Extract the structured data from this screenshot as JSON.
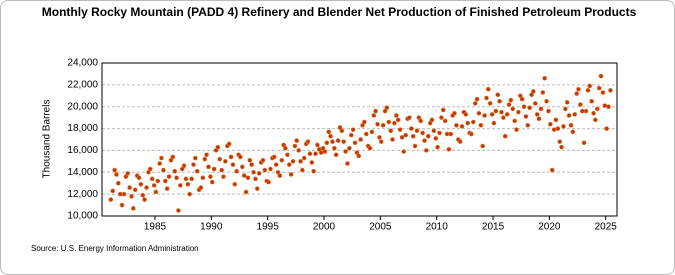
{
  "chart_data": {
    "type": "scatter",
    "title": "Monthly Rocky Mountain (PADD 4) Refinery and Blender Net Production of Finished Petroleum Products",
    "y_label": "Thousand Barrels",
    "source": "Source: U.S. Energy Information Administration",
    "color": "#c0390b",
    "grid": true,
    "xlim": [
      1980.3,
      2026
    ],
    "xticks": [
      1985,
      1990,
      1995,
      2000,
      2005,
      2010,
      2015,
      2020,
      2025
    ],
    "ylim": [
      10000,
      24000
    ],
    "yticks": [
      {
        "value": 10000,
        "label": "10,000"
      },
      {
        "value": 12000,
        "label": "12,000"
      },
      {
        "value": 14000,
        "label": "14,000"
      },
      {
        "value": 16000,
        "label": "16,000"
      },
      {
        "value": 18000,
        "label": "18,000"
      },
      {
        "value": 20000,
        "label": "20,000"
      },
      {
        "value": 22000,
        "label": "22,000"
      },
      {
        "value": 24000,
        "label": "24,000"
      }
    ],
    "x": [
      1981.08,
      1981.25,
      1981.42,
      1981.58,
      1981.75,
      1981.92,
      1982.08,
      1982.25,
      1982.42,
      1982.58,
      1982.75,
      1982.92,
      1983.08,
      1983.25,
      1983.42,
      1983.58,
      1983.75,
      1983.92,
      1984.08,
      1984.25,
      1984.42,
      1984.58,
      1984.75,
      1984.92,
      1985.08,
      1985.25,
      1985.42,
      1985.58,
      1985.75,
      1985.92,
      1986.08,
      1986.25,
      1986.42,
      1986.58,
      1986.75,
      1986.92,
      1987.08,
      1987.25,
      1987.42,
      1987.58,
      1987.75,
      1987.92,
      1988.08,
      1988.25,
      1988.42,
      1988.58,
      1988.75,
      1988.92,
      1989.08,
      1989.25,
      1989.42,
      1989.58,
      1989.75,
      1989.92,
      1990.08,
      1990.25,
      1990.42,
      1990.58,
      1990.75,
      1990.92,
      1991.08,
      1991.25,
      1991.42,
      1991.58,
      1991.75,
      1991.92,
      1992.08,
      1992.25,
      1992.42,
      1992.58,
      1992.75,
      1992.92,
      1993.08,
      1993.25,
      1993.42,
      1993.58,
      1993.75,
      1993.92,
      1994.08,
      1994.25,
      1994.42,
      1994.58,
      1994.75,
      1994.92,
      1995.08,
      1995.25,
      1995.42,
      1995.58,
      1995.75,
      1995.92,
      1996.08,
      1996.25,
      1996.42,
      1996.58,
      1996.75,
      1996.92,
      1997.08,
      1997.25,
      1997.42,
      1997.58,
      1997.75,
      1997.92,
      1998.08,
      1998.25,
      1998.42,
      1998.58,
      1998.75,
      1998.92,
      1999.08,
      1999.25,
      1999.42,
      1999.58,
      1999.75,
      1999.92,
      2000.08,
      2000.25,
      2000.42,
      2000.58,
      2000.75,
      2000.92,
      2001.08,
      2001.25,
      2001.42,
      2001.58,
      2001.75,
      2001.92,
      2002.08,
      2002.25,
      2002.42,
      2002.58,
      2002.75,
      2002.92,
      2003.08,
      2003.25,
      2003.42,
      2003.58,
      2003.75,
      2003.92,
      2004.08,
      2004.25,
      2004.42,
      2004.58,
      2004.75,
      2004.92,
      2005.08,
      2005.25,
      2005.42,
      2005.58,
      2005.75,
      2005.92,
      2006.08,
      2006.25,
      2006.42,
      2006.58,
      2006.75,
      2006.92,
      2007.08,
      2007.25,
      2007.42,
      2007.58,
      2007.75,
      2007.92,
      2008.08,
      2008.25,
      2008.42,
      2008.58,
      2008.75,
      2008.92,
      2009.08,
      2009.25,
      2009.42,
      2009.58,
      2009.75,
      2009.92,
      2010.08,
      2010.25,
      2010.42,
      2010.58,
      2010.75,
      2010.92,
      2011.08,
      2011.25,
      2011.42,
      2011.58,
      2011.75,
      2011.92,
      2012.08,
      2012.25,
      2012.42,
      2012.58,
      2012.75,
      2012.92,
      2013.08,
      2013.25,
      2013.42,
      2013.58,
      2013.75,
      2013.92,
      2014.08,
      2014.25,
      2014.42,
      2014.58,
      2014.75,
      2014.92,
      2015.08,
      2015.25,
      2015.42,
      2015.58,
      2015.75,
      2015.92,
      2016.08,
      2016.25,
      2016.42,
      2016.58,
      2016.75,
      2016.92,
      2017.08,
      2017.25,
      2017.42,
      2017.58,
      2017.75,
      2017.92,
      2018.08,
      2018.25,
      2018.42,
      2018.58,
      2018.75,
      2018.92,
      2019.08,
      2019.25,
      2019.42,
      2019.58,
      2019.75,
      2019.92,
      2020.08,
      2020.25,
      2020.42,
      2020.58,
      2020.75,
      2020.92,
      2021.08,
      2021.25,
      2021.42,
      2021.58,
      2021.75,
      2021.92,
      2022.08,
      2022.25,
      2022.42,
      2022.58,
      2022.75,
      2022.92,
      2023.08,
      2023.25,
      2023.42,
      2023.58,
      2023.75,
      2023.92,
      2024.08,
      2024.25,
      2024.42,
      2024.58,
      2024.75,
      2024.92,
      2025.08,
      2025.25,
      2025.42
    ],
    "values": [
      11500,
      12300,
      14200,
      13800,
      13000,
      12000,
      11000,
      12000,
      13600,
      13900,
      12600,
      11800,
      10700,
      12400,
      13700,
      13500,
      12900,
      11900,
      11500,
      12600,
      14000,
      14300,
      13400,
      12800,
      12200,
      13200,
      14800,
      15300,
      14200,
      13200,
      12500,
      13600,
      15100,
      15400,
      14100,
      13500,
      10500,
      12800,
      14300,
      14600,
      13400,
      12900,
      12000,
      13400,
      14700,
      15300,
      14100,
      12400,
      12600,
      13500,
      15200,
      15600,
      14500,
      13600,
      13100,
      14300,
      16000,
      16300,
      15200,
      14200,
      13600,
      15000,
      16400,
      16600,
      15400,
      14700,
      12900,
      14100,
      15600,
      15400,
      14500,
      13700,
      12200,
      13500,
      15100,
      14700,
      14000,
      13400,
      12500,
      13900,
      14900,
      15100,
      14200,
      13200,
      13100,
      14300,
      15300,
      15400,
      14700,
      14000,
      13700,
      15100,
      16500,
      16200,
      15600,
      14700,
      13800,
      15000,
      16400,
      16900,
      16000,
      15000,
      14200,
      15300,
      16600,
      16800,
      15700,
      14900,
      14100,
      15700,
      16500,
      16100,
      15800,
      16200,
      15900,
      16700,
      17700,
      17300,
      16800,
      16200,
      15600,
      16900,
      18100,
      17800,
      16800,
      15900,
      14800,
      16200,
      17400,
      17900,
      16700,
      15800,
      15500,
      17000,
      18300,
      18600,
      17500,
      16400,
      16200,
      17700,
      19200,
      19600,
      18400,
      17200,
      16800,
      18300,
      19600,
      19900,
      18600,
      17800,
      17000,
      18500,
      19200,
      18800,
      17900,
      17200,
      15900,
      17400,
      18900,
      19000,
      18000,
      17300,
      16400,
      17800,
      19000,
      18700,
      17600,
      16900,
      16000,
      17300,
      18500,
      18800,
      17800,
      17100,
      16300,
      17600,
      19000,
      19700,
      18700,
      17500,
      16100,
      17500,
      19200,
      19400,
      18300,
      17000,
      16800,
      18200,
      19500,
      19300,
      18500,
      17600,
      17500,
      18600,
      20300,
      20700,
      19400,
      18300,
      16400,
      19200,
      20800,
      21600,
      20300,
      19300,
      18500,
      19600,
      21100,
      20500,
      19500,
      19000,
      17300,
      19300,
      20200,
      20600,
      19800,
      18700,
      17900,
      19500,
      21000,
      20700,
      20000,
      19100,
      18300,
      19900,
      21100,
      21400,
      20300,
      19300,
      18900,
      19800,
      21300,
      22600,
      20500,
      19600,
      18400,
      14200,
      17900,
      18800,
      18000,
      16800,
      16300,
      18200,
      19800,
      20400,
      19200,
      18300,
      17700,
      19300,
      21200,
      21600,
      20200,
      19600,
      16700,
      19600,
      21500,
      21900,
      20500,
      19400,
      18800,
      19800,
      21700,
      22800,
      21300,
      20100,
      18000,
      20000,
      21500
    ]
  }
}
